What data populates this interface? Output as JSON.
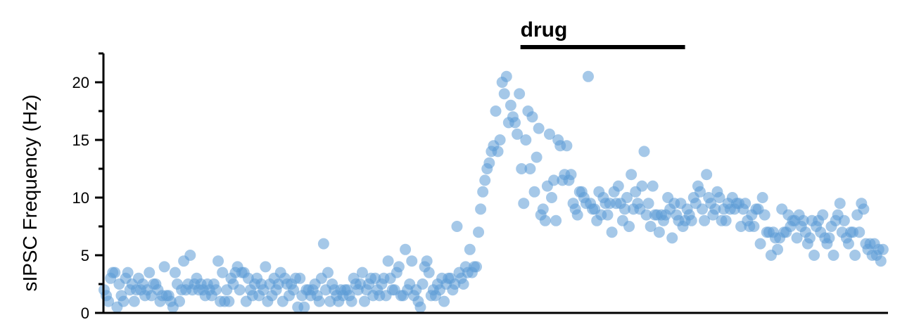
{
  "chart_data": {
    "type": "scatter",
    "title": "",
    "xlabel": "",
    "ylabel": "sIPSC Frequency (Hz)",
    "ylim": [
      0,
      22.5
    ],
    "xlim": [
      0,
      364
    ],
    "yticks": [
      0,
      5,
      10,
      15,
      20
    ],
    "grid": false,
    "x_axis_visible": true,
    "x_tick_labels": false,
    "annotation": {
      "label": "drug",
      "x_start": 193.5,
      "x_end": 270
    },
    "marker_color": "#5b9bd5",
    "marker_opacity": 0.55,
    "series": [
      {
        "values": [
          2,
          1.5,
          1,
          3,
          3.5,
          3.5,
          0.5,
          2.5,
          1.5,
          1,
          3,
          3.5,
          2,
          2.5,
          1,
          2,
          3,
          2,
          2.5,
          1.5,
          2,
          3.5,
          1.5,
          2.5,
          2.5,
          2,
          1,
          1.5,
          4,
          1.5,
          1.5,
          1,
          0.5,
          3.5,
          2.5,
          1,
          2,
          4.5,
          2,
          2.5,
          5,
          2,
          2.5,
          3,
          2,
          2.5,
          2,
          1.5,
          2.5,
          2,
          1.5,
          2.5,
          2,
          4.5,
          1,
          3.5,
          1,
          2,
          1,
          3,
          2.5,
          3.5,
          4,
          2,
          3.5,
          3.5,
          1,
          3,
          2,
          1.5,
          2.5,
          3,
          1.5,
          2.5,
          2,
          4,
          1,
          2.5,
          1.5,
          3,
          2,
          2.5,
          3.5,
          1,
          3,
          2.5,
          1.5,
          2.5,
          2,
          3,
          0.5,
          3,
          1.5,
          0.5,
          2,
          2,
          1.5,
          2,
          2.5,
          1.5,
          1,
          3,
          6,
          2,
          3.5,
          1,
          2.5,
          2,
          1.5,
          1,
          2,
          1.5,
          2,
          2,
          1.5,
          1,
          3,
          2.5,
          2,
          2.5,
          3.5,
          1,
          2,
          2.5,
          3,
          1.5,
          3,
          2,
          1.5,
          2.5,
          3,
          1.5,
          4.5,
          3,
          2,
          2,
          3.5,
          4,
          1.5,
          1.5,
          5.5,
          2,
          2.5,
          4.5,
          1.5,
          2,
          1,
          0.5,
          2.5,
          4,
          4.5,
          3.5,
          1.5,
          2,
          1.5,
          2.5,
          2,
          3,
          1,
          2.5,
          3,
          3,
          2,
          2.5,
          7.5,
          3.5,
          3,
          2.5,
          4,
          3.5,
          5.5,
          3.5,
          4,
          4,
          7,
          9,
          10.5,
          11.5,
          12.5,
          13,
          14,
          14.5,
          17.5,
          14,
          15,
          20,
          19,
          20.5,
          16.5,
          18,
          17,
          16.5,
          15.5,
          19,
          12.5,
          9.5,
          15,
          17.5,
          12.5,
          17,
          10.5,
          13.5,
          16,
          8.5,
          9,
          8,
          11,
          15.5,
          10,
          11.5,
          8,
          15,
          14.5,
          11.5,
          12,
          14.5,
          11.5,
          12,
          9.5,
          9,
          8.5,
          10.5,
          10.5,
          10,
          9.5,
          20.5,
          9.5,
          9,
          9,
          8,
          10.5,
          8.5,
          10,
          9.5,
          8.5,
          9.5,
          7,
          10.5,
          9.5,
          11,
          9.5,
          8,
          9,
          10,
          7.5,
          12,
          9,
          10.5,
          9.5,
          9,
          11,
          14,
          8.5,
          9.5,
          7.5,
          11,
          8.5,
          8.5,
          7,
          8.5,
          8,
          8.5,
          10,
          9,
          6.5,
          9.5,
          8.5,
          8,
          9.5,
          7.5,
          8,
          9,
          8.5,
          8,
          10,
          9.5,
          11,
          10.5,
          9,
          8,
          12,
          10,
          9.5,
          8.5,
          9,
          10.5,
          10,
          8,
          9,
          8,
          9.5,
          9,
          10,
          9,
          9.5,
          9.5,
          7.5,
          9,
          9.5,
          8,
          7.5,
          8.5,
          7.5,
          9,
          9,
          6,
          10,
          8.5,
          7,
          7,
          5,
          7,
          6.5,
          5.5,
          6.5,
          9,
          7,
          7,
          8.5,
          7.5,
          8,
          8,
          6.5,
          8.5,
          7.5,
          8,
          7,
          6,
          6.5,
          8,
          5,
          7.5,
          8,
          7,
          8.5,
          6.5,
          6,
          6.5,
          7.5,
          5,
          8,
          8.5,
          9.5,
          7,
          8,
          6.5,
          6,
          7,
          7,
          5,
          8.5,
          7,
          9.5,
          9,
          6,
          5.5,
          6,
          5,
          6,
          5,
          5.5,
          4.5,
          5.5
        ]
      }
    ]
  }
}
